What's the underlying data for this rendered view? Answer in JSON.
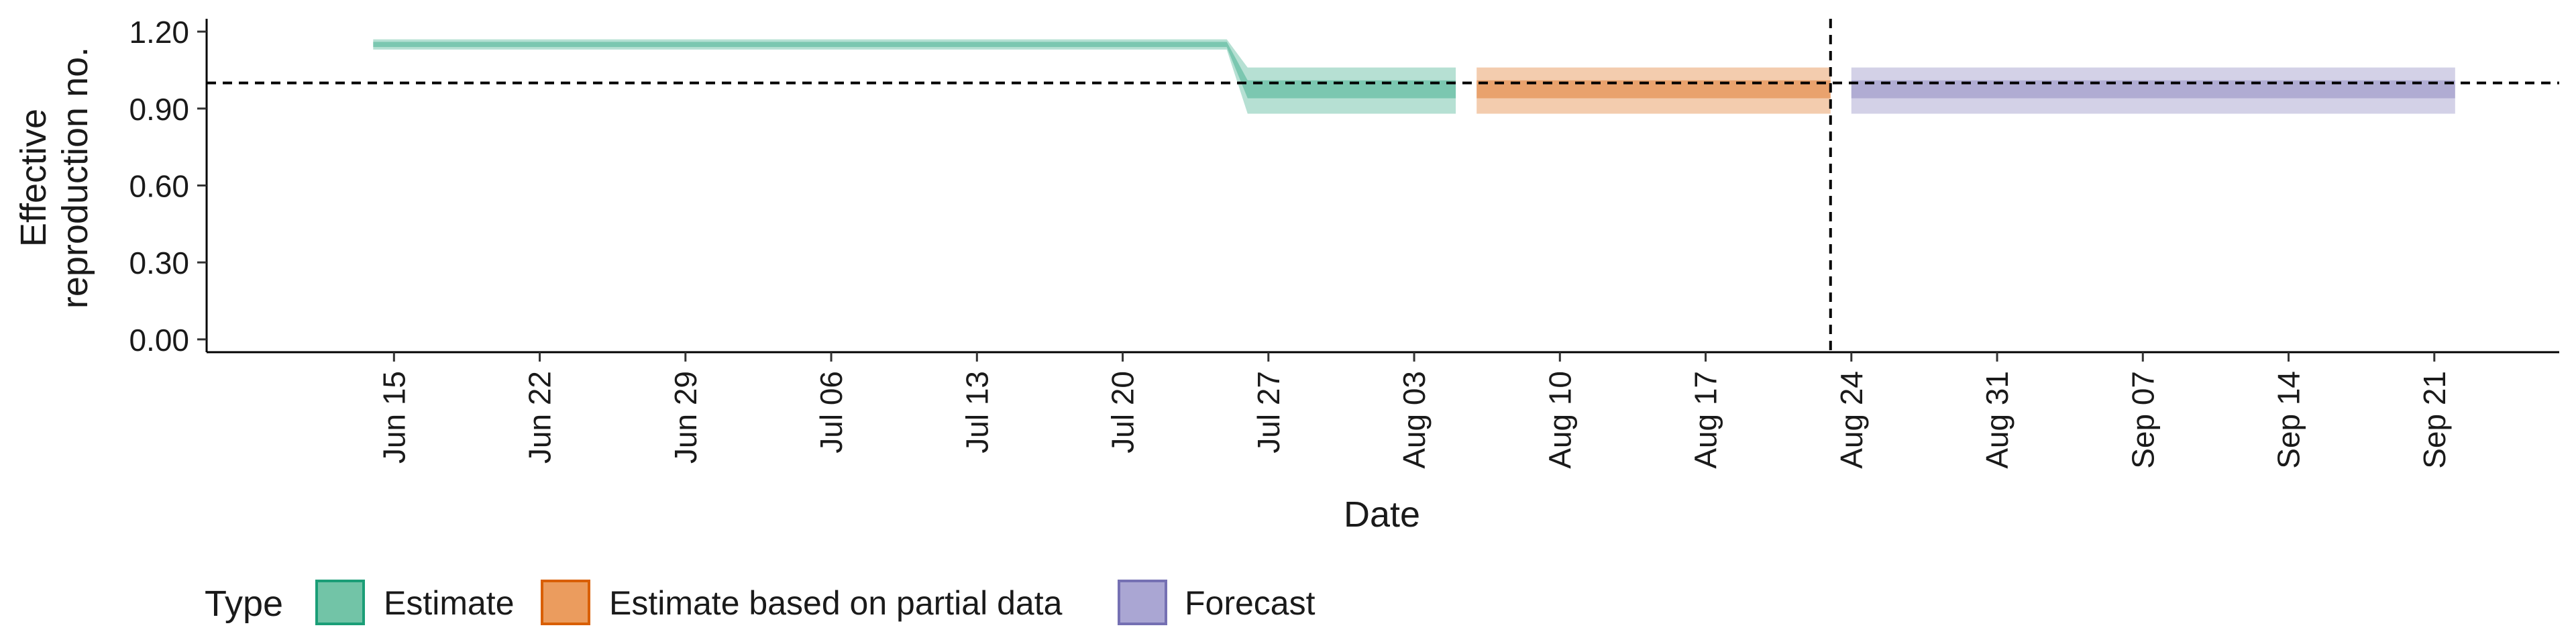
{
  "chart_data": {
    "type": "area",
    "xlabel": "Date",
    "ylabel_lines": [
      "Effective",
      "reproduction no."
    ],
    "x_ticks": [
      "2020-06-15",
      "2020-06-22",
      "2020-06-29",
      "2020-07-06",
      "2020-07-13",
      "2020-07-20",
      "2020-07-27",
      "2020-08-03",
      "2020-08-10",
      "2020-08-17",
      "2020-08-24",
      "2020-08-31",
      "2020-09-07",
      "2020-09-14",
      "2020-09-21"
    ],
    "x_tick_labels": [
      "Jun 15",
      "Jun 22",
      "Jun 29",
      "Jul 06",
      "Jul 13",
      "Jul 20",
      "Jul 27",
      "Aug 03",
      "Aug 10",
      "Aug 17",
      "Aug 24",
      "Aug 31",
      "Sep 07",
      "Sep 14",
      "Sep 21"
    ],
    "xlim": [
      "2020-06-06",
      "2020-09-27"
    ],
    "y_ticks": [
      0.0,
      0.3,
      0.6,
      0.9,
      1.2
    ],
    "y_tick_labels": [
      "0.00",
      "0.30",
      "0.60",
      "0.90",
      "1.20"
    ],
    "ylim": [
      -0.05,
      1.25
    ],
    "reference_line_y": 1.0,
    "vertical_line_x": "2020-08-23",
    "series": [
      {
        "name": "Estimate",
        "color": "#1b9e77",
        "points": [
          {
            "x": "2020-06-14",
            "lower90": 1.13,
            "upper90": 1.17,
            "lower50": 1.14,
            "upper50": 1.16
          },
          {
            "x": "2020-07-25",
            "lower90": 1.13,
            "upper90": 1.17,
            "lower50": 1.14,
            "upper50": 1.16
          },
          {
            "x": "2020-07-26",
            "lower90": 0.88,
            "upper90": 1.06,
            "lower50": 0.94,
            "upper50": 1.01
          },
          {
            "x": "2020-08-05",
            "lower90": 0.88,
            "upper90": 1.06,
            "lower50": 0.94,
            "upper50": 1.01
          }
        ]
      },
      {
        "name": "Estimate based on partial data",
        "color": "#d95f02",
        "points": [
          {
            "x": "2020-08-06",
            "lower90": 0.88,
            "upper90": 1.06,
            "lower50": 0.94,
            "upper50": 1.01
          },
          {
            "x": "2020-08-23",
            "lower90": 0.88,
            "upper90": 1.06,
            "lower50": 0.94,
            "upper50": 1.01
          }
        ]
      },
      {
        "name": "Forecast",
        "color": "#7570b3",
        "points": [
          {
            "x": "2020-08-24",
            "lower90": 0.88,
            "upper90": 1.06,
            "lower50": 0.94,
            "upper50": 1.01
          },
          {
            "x": "2020-09-22",
            "lower90": 0.88,
            "upper90": 1.06,
            "lower50": 0.94,
            "upper50": 1.01
          }
        ]
      }
    ],
    "legend": {
      "title": "Type",
      "placement": "bottom-left",
      "items": [
        {
          "label": "Estimate",
          "fill": "#72c4a7",
          "stroke": "#1b9e77"
        },
        {
          "label": "Estimate based on partial data",
          "fill": "#eb9c5e",
          "stroke": "#d95f02"
        },
        {
          "label": "Forecast",
          "fill": "#aaa6d3",
          "stroke": "#7570b3"
        }
      ]
    },
    "grid": false
  }
}
